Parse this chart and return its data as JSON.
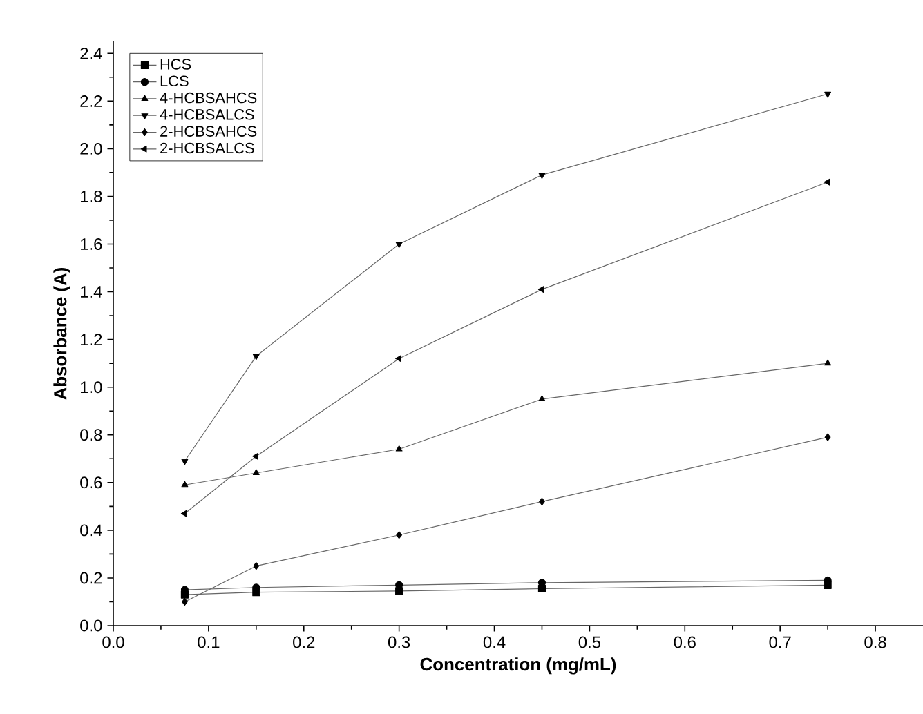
{
  "chart_data": {
    "type": "line",
    "xlabel": "Concentration (mg/mL)",
    "ylabel": "Absorbance (A)",
    "x": [
      0.075,
      0.15,
      0.3,
      0.45,
      0.75
    ],
    "series": [
      {
        "name": "HCS",
        "color": "#000000",
        "marker": "square",
        "values": [
          0.13,
          0.14,
          0.145,
          0.155,
          0.17
        ]
      },
      {
        "name": "LCS",
        "color": "#000000",
        "marker": "circle",
        "values": [
          0.15,
          0.16,
          0.17,
          0.18,
          0.19
        ]
      },
      {
        "name": "4-HCBSAHCS",
        "color": "#000000",
        "marker": "triangle",
        "values": [
          0.59,
          0.64,
          0.74,
          0.95,
          1.1
        ]
      },
      {
        "name": "4-HCBSALCS",
        "color": "#000000",
        "marker": "triangle-down",
        "values": [
          0.69,
          1.13,
          1.6,
          1.89,
          2.23
        ]
      },
      {
        "name": "2-HCBSAHCS",
        "color": "#000000",
        "marker": "diamond",
        "values": [
          0.1,
          0.25,
          0.38,
          0.52,
          0.79
        ]
      },
      {
        "name": "2-HCBSALCS",
        "color": "#000000",
        "marker": "triangle-left",
        "values": [
          0.47,
          0.71,
          1.12,
          1.41,
          1.86
        ]
      }
    ],
    "xlim": [
      0.0,
      0.85
    ],
    "ylim": [
      0.0,
      2.45
    ],
    "xticks": [
      {
        "value": 0.0,
        "label": "0.0"
      },
      0.1,
      0.2,
      0.3,
      0.4,
      0.5,
      0.6,
      0.7,
      0.8
    ],
    "yticks": [
      {
        "value": 0.0,
        "label": "0.0"
      },
      0.2,
      0.4,
      0.6,
      0.8,
      {
        "value": 1.0,
        "label": "1.0"
      },
      1.2,
      1.4,
      1.6,
      1.8,
      {
        "value": 2.0,
        "label": "2.0"
      },
      2.2,
      2.4
    ],
    "grid": false,
    "legend": "top left",
    "line_style": "solid"
  }
}
